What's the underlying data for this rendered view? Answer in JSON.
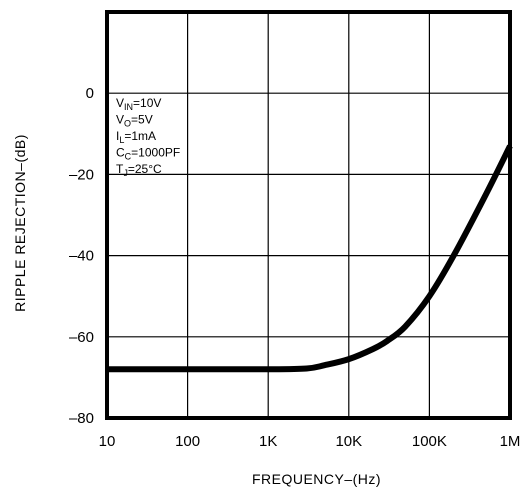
{
  "chart_data": {
    "type": "line",
    "xlabel": "FREQUENCY–(Hz)",
    "ylabel": "RIPPLE REJECTION–(dB)",
    "xscale": "log",
    "xlim": [
      10,
      1000000
    ],
    "ylim": [
      -80,
      20
    ],
    "grid": true,
    "x_ticks": [
      {
        "value": 10,
        "label": "10"
      },
      {
        "value": 100,
        "label": "100"
      },
      {
        "value": 1000,
        "label": "1K"
      },
      {
        "value": 10000,
        "label": "10K"
      },
      {
        "value": 100000,
        "label": "100K"
      },
      {
        "value": 1000000,
        "label": "1M"
      }
    ],
    "y_ticks": [
      {
        "value": 0,
        "label": "0"
      },
      {
        "value": -20,
        "label": "–20"
      },
      {
        "value": -40,
        "label": "–40"
      },
      {
        "value": -60,
        "label": "–60"
      },
      {
        "value": -80,
        "label": "–80"
      }
    ],
    "conditions": [
      {
        "main": "V",
        "sub": "IN",
        "rest": "=10V"
      },
      {
        "main": "V",
        "sub": "O",
        "rest": "=5V"
      },
      {
        "main": "I",
        "sub": "L",
        "rest": "=1mA"
      },
      {
        "main": "C",
        "sub": "C",
        "rest": "=1000PF"
      },
      {
        "main": "T",
        "sub": "J",
        "rest": "=25°C"
      }
    ],
    "series": [
      {
        "x": [
          10,
          100,
          1000,
          3000,
          5000,
          10000,
          20000,
          30000,
          50000,
          100000,
          200000,
          500000,
          1000000
        ],
        "y": [
          -68,
          -68,
          -68,
          -67.8,
          -67,
          -65.5,
          -63,
          -61,
          -57.5,
          -50,
          -40,
          -25,
          -13
        ]
      }
    ]
  }
}
